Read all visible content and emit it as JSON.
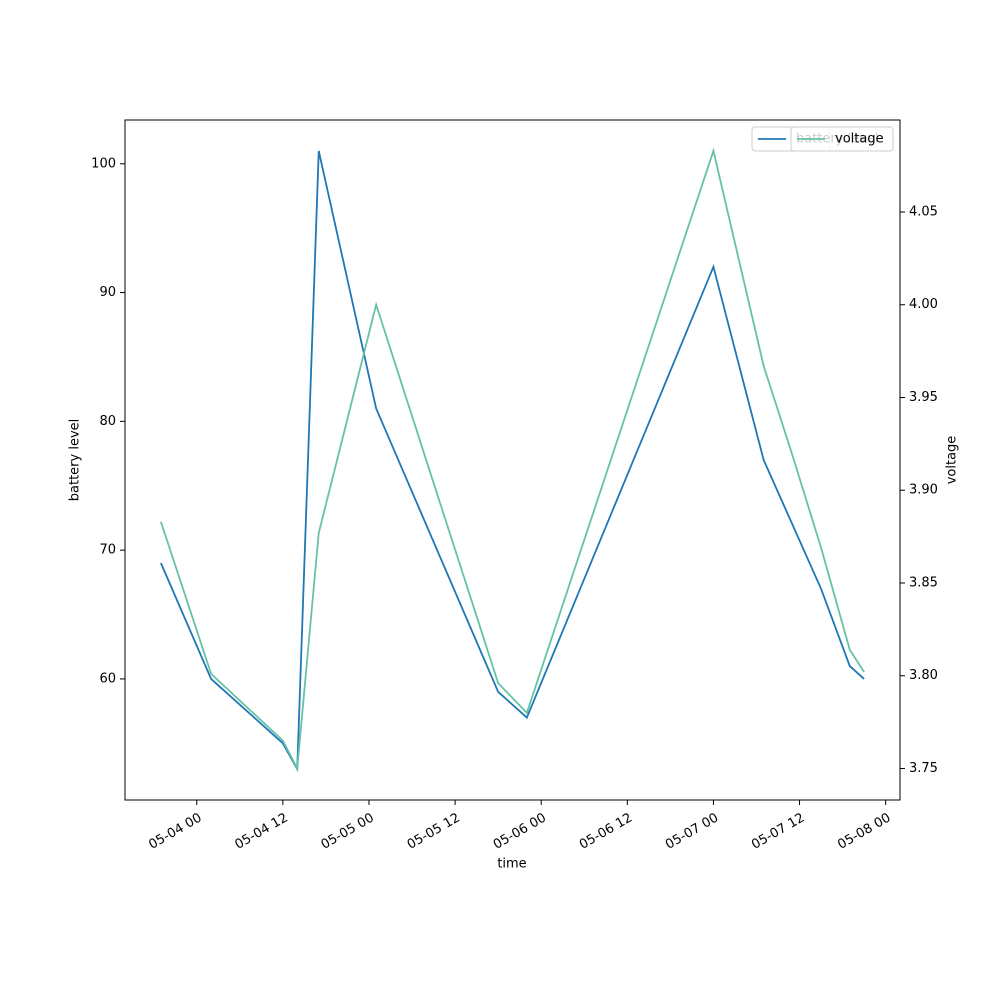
{
  "chart_data": {
    "type": "line",
    "x_label": "time",
    "y_label": "battery level",
    "y2_label": "voltage",
    "x": [
      "05-03 19",
      "05-04 02",
      "05-04 12",
      "05-04 14",
      "05-04 17",
      "05-05 01",
      "05-05 18",
      "05-05 22",
      "05-07 00",
      "05-07 07",
      "05-07 11",
      "05-07 15",
      "05-07 19",
      "05-07 21"
    ],
    "series": [
      {
        "name": "battery level",
        "color": "#1f77b4",
        "values": [
          69,
          60,
          55,
          53,
          101,
          81,
          59,
          57,
          92,
          77,
          72,
          67,
          61,
          60
        ]
      },
      {
        "name": "voltage",
        "color": "#66c2a5",
        "axis": "y2",
        "values": [
          3.883,
          3.801,
          3.765,
          3.75,
          3.877,
          4.0,
          3.796,
          3.78,
          4.083,
          3.967,
          3.919,
          3.869,
          3.814,
          3.802
        ]
      }
    ],
    "xlim": [
      "05-03 14",
      "05-08 02"
    ],
    "xticks": [
      "05-04 00",
      "05-04 12",
      "05-05 00",
      "05-05 12",
      "05-06 00",
      "05-06 12",
      "05-07 00",
      "05-07 12",
      "05-08 00"
    ],
    "ylim": [
      50.6,
      103.4
    ],
    "yticks": [
      60,
      70,
      80,
      90,
      100
    ],
    "y2lim": [
      3.733,
      4.0996
    ],
    "y2ticks": [
      3.75,
      {
        "value": 3.8,
        "label": "3.80"
      },
      3.85,
      {
        "value": 3.9,
        "label": "3.90"
      },
      3.95,
      {
        "value": 4.0,
        "label": "4.00"
      },
      4.05
    ],
    "grid": false,
    "legend": "upper right"
  }
}
